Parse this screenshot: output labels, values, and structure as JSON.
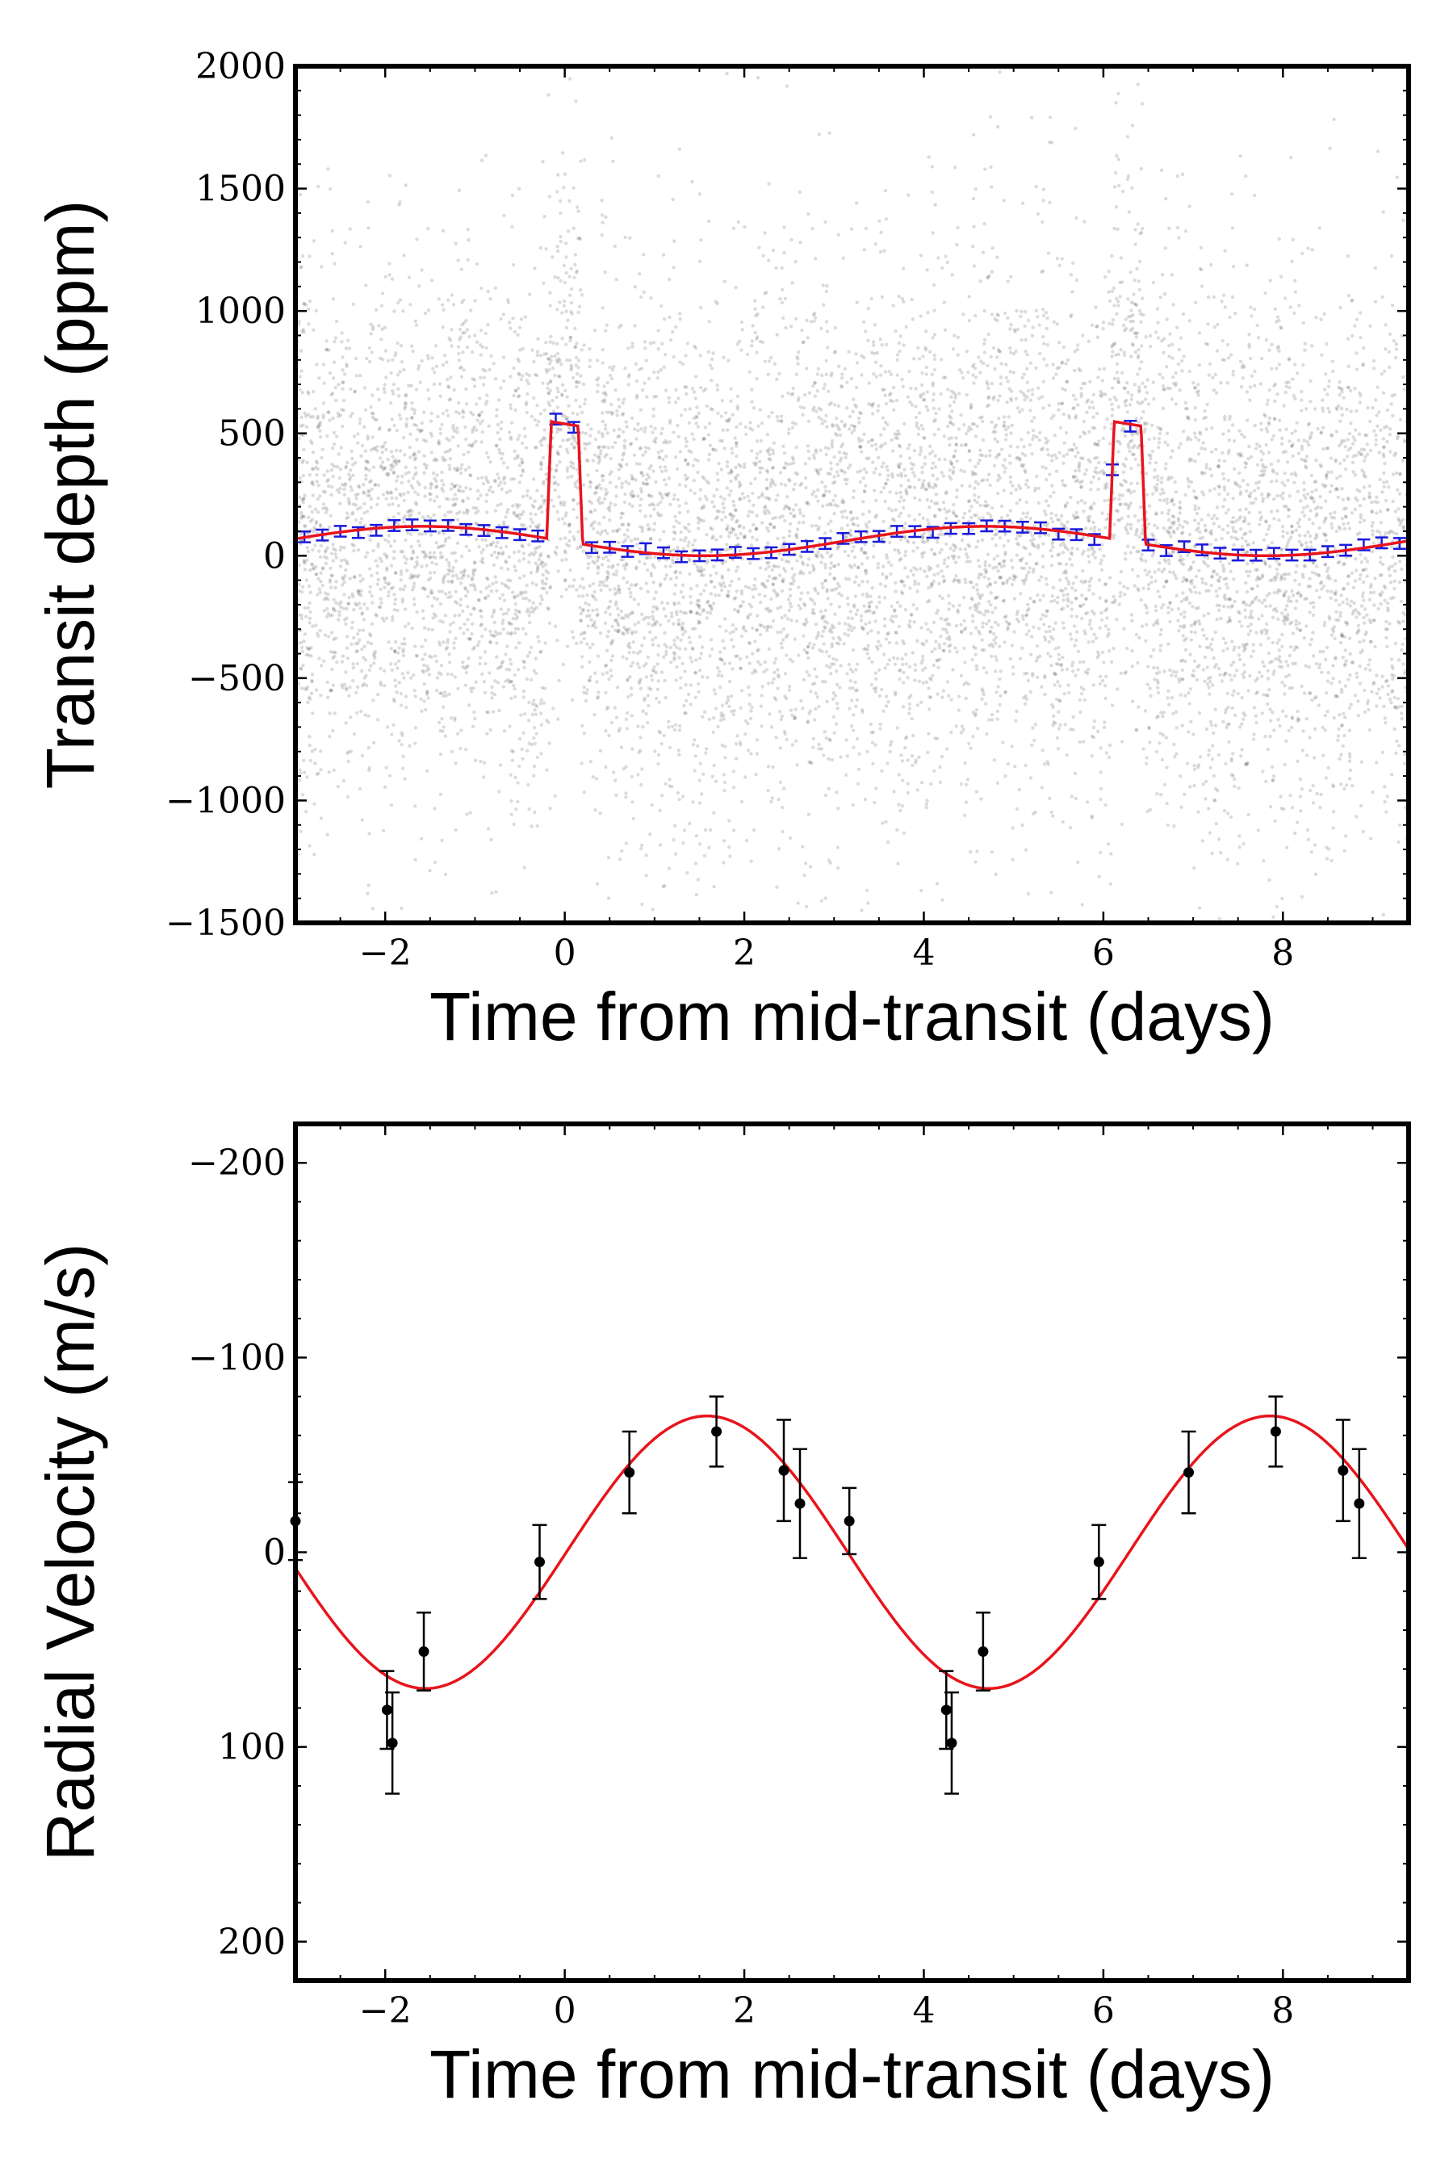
{
  "chart_data": [
    {
      "type": "scatter",
      "xlabel": "Time from mid-transit (days)",
      "ylabel": "Transit depth (ppm)",
      "xlim": [
        -3.0,
        9.4
      ],
      "ylim": [
        2000,
        -1500
      ],
      "y_inverted": true,
      "xticks": [
        -2,
        0,
        2,
        4,
        6,
        8
      ],
      "xtick_labels": [
        "−2",
        "0",
        "2",
        "4",
        "6",
        "8"
      ],
      "yticks": [
        -1500,
        -1000,
        -500,
        0,
        500,
        1000,
        1500,
        2000
      ],
      "ytick_labels": [
        "−1500",
        "−1000",
        "−500",
        "0",
        "500",
        "1000",
        "1500",
        "2000"
      ],
      "transits_at": [
        0,
        6.27
      ],
      "transit_depth_ppm": 480,
      "modulation_amplitude_ppm": 60,
      "series": [
        {
          "kind": "raw-photometry-cloud",
          "color": "#000000",
          "scatter_ppm": 550
        },
        {
          "kind": "binned-means-with-errorbars",
          "color": "#1a1adc",
          "errorbar_ppm": 22
        },
        {
          "kind": "model-curve",
          "color": "#e8141c"
        }
      ],
      "grid": false
    },
    {
      "type": "scatter",
      "xlabel": "Time from mid-transit (days)",
      "ylabel": "Radial Velocity (m/s)",
      "xlim": [
        -3.0,
        9.4
      ],
      "ylim": [
        -220,
        220
      ],
      "xticks": [
        -2,
        0,
        2,
        4,
        6,
        8
      ],
      "xtick_labels": [
        "−2",
        "0",
        "2",
        "4",
        "6",
        "8"
      ],
      "yticks": [
        -200,
        -100,
        0,
        100,
        200
      ],
      "ytick_labels": [
        "−200",
        "−100",
        "0",
        "100",
        "200"
      ],
      "series": [
        {
          "kind": "rv-measurements",
          "color": "#000000",
          "points": [
            {
              "x": -3.0,
              "y": -16,
              "err": 20
            },
            {
              "x": -1.98,
              "y": 81,
              "err": 20
            },
            {
              "x": -1.92,
              "y": 98,
              "err": 26
            },
            {
              "x": -1.57,
              "y": 51,
              "err": 20
            },
            {
              "x": -0.28,
              "y": 5,
              "err": 19
            },
            {
              "x": 0.72,
              "y": -41,
              "err": 21
            },
            {
              "x": 1.69,
              "y": -62,
              "err": 18
            },
            {
              "x": 2.44,
              "y": -42,
              "err": 26
            },
            {
              "x": 2.62,
              "y": -25,
              "err": 28
            },
            {
              "x": 3.17,
              "y": -16,
              "err": 17
            },
            {
              "x": 4.25,
              "y": 81,
              "err": 20
            },
            {
              "x": 4.31,
              "y": 98,
              "err": 26
            },
            {
              "x": 4.66,
              "y": 51,
              "err": 20
            },
            {
              "x": 5.95,
              "y": 5,
              "err": 19
            },
            {
              "x": 6.95,
              "y": -41,
              "err": 21
            },
            {
              "x": 7.92,
              "y": -62,
              "err": 18
            },
            {
              "x": 8.67,
              "y": -42,
              "err": 26
            },
            {
              "x": 8.85,
              "y": -25,
              "err": 28
            }
          ]
        },
        {
          "kind": "model-curve",
          "color": "#e8141c",
          "amplitude": 70,
          "period": 6.27,
          "peak_at": -1.55
        }
      ],
      "grid": false
    }
  ]
}
